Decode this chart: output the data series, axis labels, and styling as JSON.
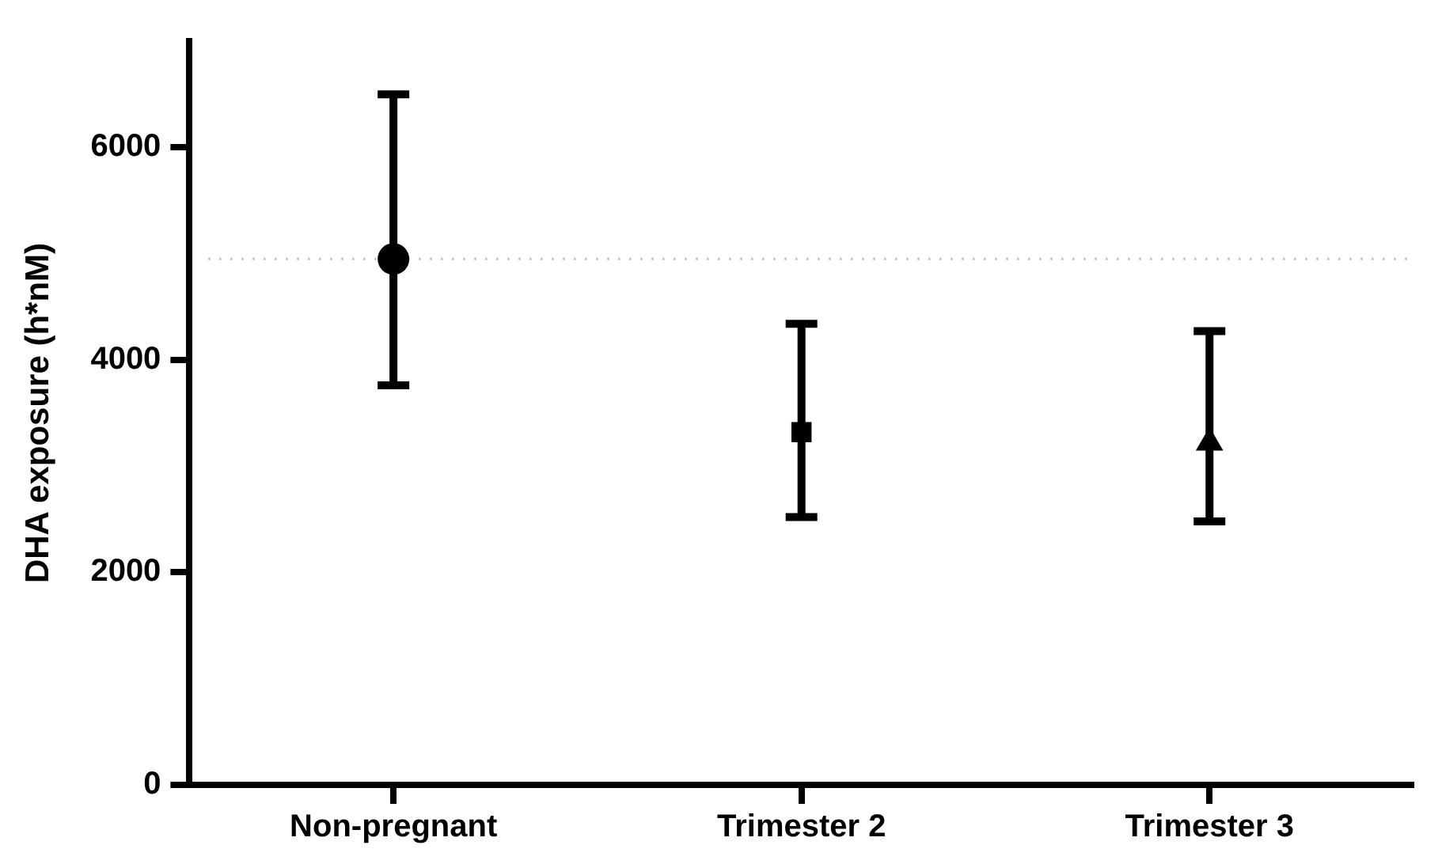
{
  "chart_data": {
    "type": "scatter",
    "ylabel": "DHA exposure (h*nM)",
    "categories": [
      "Non-pregnant",
      "Trimester 2",
      "Trimester 3"
    ],
    "series": [
      {
        "x": [
          "Non-pregnant"
        ],
        "values": [
          4950
        ],
        "errors": [
          [
            3760,
            6500
          ]
        ],
        "color": "#000000",
        "marker": "circle"
      },
      {
        "x": [
          "Trimester 2"
        ],
        "values": [
          3320
        ],
        "errors": [
          [
            2520,
            4340
          ]
        ],
        "color": "#000000",
        "marker": "square"
      },
      {
        "x": [
          "Trimester 3"
        ],
        "values": [
          3220
        ],
        "errors": [
          [
            2480,
            4270
          ]
        ],
        "color": "#000000",
        "marker": "triangle"
      }
    ],
    "ylim": [
      0,
      7000
    ],
    "yticks": [
      0,
      2000,
      4000,
      6000
    ],
    "grid": false,
    "legend": false,
    "ref_lines": [
      {
        "axis": "y",
        "value": 4950,
        "color": "#b0b0b0",
        "line_style": "dotted"
      }
    ]
  }
}
